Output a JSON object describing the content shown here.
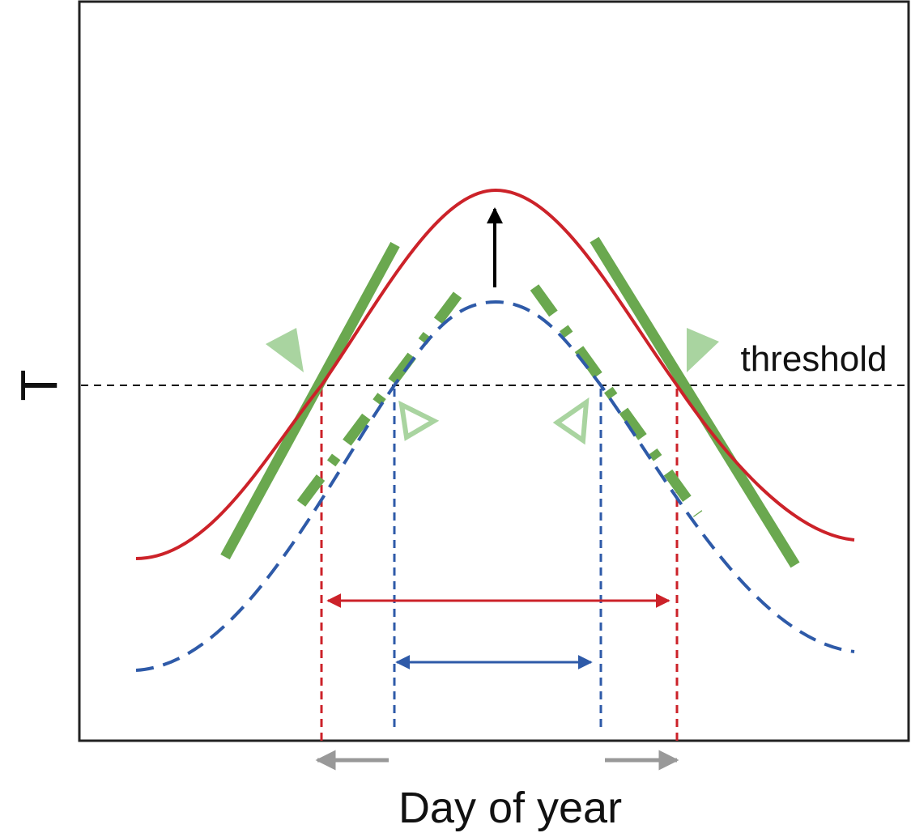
{
  "y_axis_label": "T",
  "x_axis_label": "Day of year",
  "threshold_label": "threshold"
}
